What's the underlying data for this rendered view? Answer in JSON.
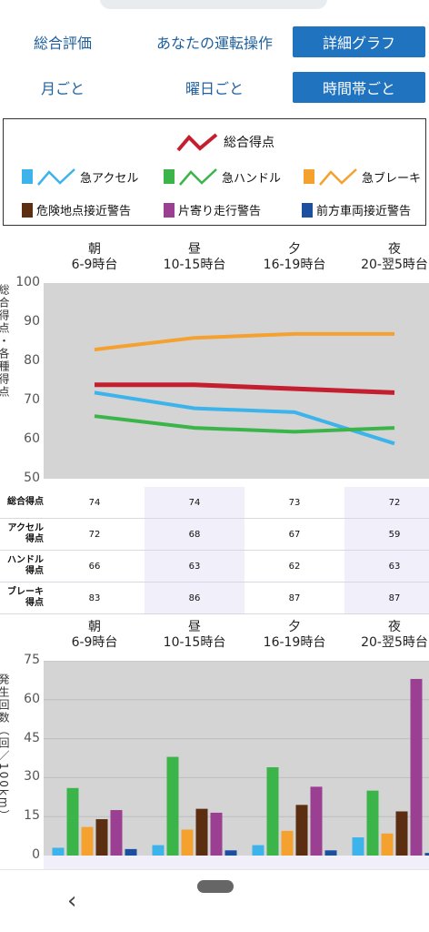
{
  "tabs_row1": [
    "総合評価",
    "あなたの運転操作",
    "詳細グラフ"
  ],
  "tabs_row2": [
    "月ごと",
    "曜日ごと",
    "時間帯ごと"
  ],
  "legend": {
    "total": "総合得点",
    "accel": "急アクセル",
    "handle": "急ハンドル",
    "brake": "急ブレーキ",
    "danger": "危険地点接近警告",
    "lane": "片寄り走行警告",
    "front": "前方車両接近警告"
  },
  "colors": {
    "total": "#c41f2f",
    "accel": "#3db3ec",
    "handle": "#3bb54a",
    "brake": "#f5a130",
    "danger": "#5b2e12",
    "lane": "#9b3f92",
    "front": "#1d4fa0",
    "tab_active": "#1f73bf",
    "plot_bg": "#d4d4d4"
  },
  "periods": [
    {
      "name": "朝",
      "hours": "6-9時台"
    },
    {
      "name": "昼",
      "hours": "10-15時台"
    },
    {
      "name": "夕",
      "hours": "16-19時台"
    },
    {
      "name": "夜",
      "hours": "20-翌5時台"
    }
  ],
  "line_ylabel": "総合得点・各種得点",
  "bar_ylabel": "発生回数（回／100km）",
  "table": {
    "rows": [
      {
        "label": "総合得点",
        "values": [
          "74",
          "74",
          "73",
          "72"
        ]
      },
      {
        "label": "アクセル得点",
        "values": [
          "72",
          "68",
          "67",
          "59"
        ]
      },
      {
        "label": "ハンドル得点",
        "values": [
          "66",
          "63",
          "62",
          "63"
        ]
      },
      {
        "label": "ブレーキ得点",
        "values": [
          "83",
          "86",
          "87",
          "87"
        ]
      }
    ]
  },
  "chart_data": [
    {
      "type": "line",
      "categories": [
        "朝 6-9時台",
        "昼 10-15時台",
        "夕 16-19時台",
        "夜 20-翌5時台"
      ],
      "ylim": [
        50,
        100
      ],
      "yticks": [
        50,
        60,
        70,
        80,
        90,
        100
      ],
      "grid": false,
      "series": [
        {
          "name": "総合得点",
          "values": [
            74,
            74,
            73,
            72
          ],
          "color": "#c41f2f"
        },
        {
          "name": "急アクセル",
          "values": [
            72,
            68,
            67,
            59
          ],
          "color": "#3db3ec"
        },
        {
          "name": "急ハンドル",
          "values": [
            66,
            63,
            62,
            63
          ],
          "color": "#3bb54a"
        },
        {
          "name": "急ブレーキ",
          "values": [
            83,
            86,
            87,
            87
          ],
          "color": "#f5a130"
        }
      ]
    },
    {
      "type": "bar",
      "categories": [
        "朝 6-9時台",
        "昼 10-15時台",
        "夕 16-19時台",
        "夜 20-翌5時台"
      ],
      "ylim": [
        0,
        75
      ],
      "yticks": [
        0,
        15,
        30,
        45,
        60,
        75
      ],
      "grid": true,
      "series": [
        {
          "name": "急アクセル",
          "values": [
            3,
            4,
            4,
            7
          ],
          "color": "#3db3ec"
        },
        {
          "name": "急ハンドル",
          "values": [
            26,
            38,
            34,
            25
          ],
          "color": "#3bb54a"
        },
        {
          "name": "急ブレーキ",
          "values": [
            11,
            10,
            9.5,
            8.5
          ],
          "color": "#f5a130"
        },
        {
          "name": "危険地点接近警告",
          "values": [
            14,
            18,
            19.5,
            17
          ],
          "color": "#5b2e12"
        },
        {
          "name": "片寄り走行警告",
          "values": [
            17.5,
            16.5,
            26.5,
            68
          ],
          "color": "#9b3f92"
        },
        {
          "name": "前方車両接近警告",
          "values": [
            2.5,
            2,
            2,
            1
          ],
          "color": "#1d4fa0"
        }
      ]
    }
  ],
  "nav": {
    "back": "‹"
  }
}
